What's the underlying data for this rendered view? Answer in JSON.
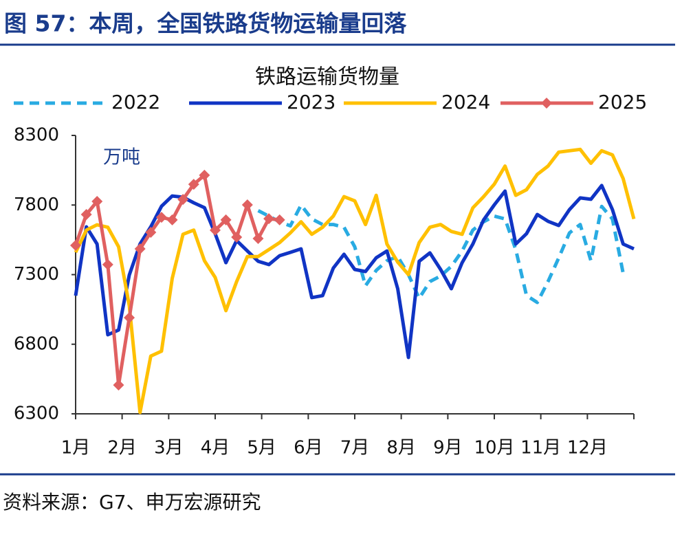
{
  "header": {
    "title": "图 57：本周，全国铁路货物运输量回落"
  },
  "chart_data": {
    "type": "line",
    "title": "铁路运输货物量",
    "unit_label": "万吨",
    "x": [
      0,
      1,
      2,
      3,
      4,
      5,
      6,
      7,
      8,
      9,
      10,
      11,
      12,
      13,
      14,
      15,
      16,
      17,
      18,
      19,
      20,
      21,
      22,
      23,
      24,
      25,
      26,
      27,
      28,
      29,
      30,
      31,
      32,
      33,
      34,
      35,
      36,
      37,
      38,
      39,
      40,
      41,
      42,
      43,
      44,
      45,
      46,
      47,
      48,
      49,
      50,
      51,
      52
    ],
    "xlim": [
      0,
      52
    ],
    "xticks": [
      {
        "value": 0,
        "label": "1月"
      },
      {
        "value": 4.33,
        "label": "2月"
      },
      {
        "value": 8.67,
        "label": "3月"
      },
      {
        "value": 13,
        "label": "4月"
      },
      {
        "value": 17.33,
        "label": "5月"
      },
      {
        "value": 21.67,
        "label": "6月"
      },
      {
        "value": 26,
        "label": "7月"
      },
      {
        "value": 30.33,
        "label": "8月"
      },
      {
        "value": 34.67,
        "label": "9月"
      },
      {
        "value": 39,
        "label": "10月"
      },
      {
        "value": 43.33,
        "label": "11月"
      },
      {
        "value": 47.67,
        "label": "12月"
      },
      {
        "value": 52,
        "label": null
      }
    ],
    "ylim": [
      6300,
      8300
    ],
    "yticks": [
      6300,
      6800,
      7300,
      7800,
      8300
    ],
    "series": [
      {
        "name": "2022",
        "color": "#29abe2",
        "dash": true,
        "markers": false,
        "values": [
          null,
          null,
          null,
          null,
          null,
          null,
          null,
          null,
          null,
          null,
          null,
          null,
          null,
          null,
          null,
          null,
          null,
          7760,
          7720,
          7680,
          7650,
          7800,
          7700,
          7660,
          7660,
          7640,
          7500,
          7220,
          7330,
          7400,
          7430,
          7300,
          7130,
          7250,
          7290,
          7360,
          7470,
          7620,
          7680,
          7720,
          7700,
          7480,
          7150,
          7100,
          7250,
          7420,
          7600,
          7660,
          7400,
          7790,
          7700,
          7310,
          null
        ]
      },
      {
        "name": "2023",
        "color": "#1034c4",
        "dash": false,
        "markers": false,
        "values": [
          7149,
          7643,
          7520,
          6868,
          6902,
          7298,
          7520,
          7643,
          7791,
          7865,
          7856,
          7816,
          7781,
          7594,
          7386,
          7545,
          7470,
          7396,
          7372,
          7436,
          7460,
          7485,
          7135,
          7149,
          7347,
          7446,
          7337,
          7322,
          7421,
          7470,
          7199,
          6705,
          7396,
          7456,
          7337,
          7199,
          7386,
          7520,
          7693,
          7801,
          7900,
          7520,
          7594,
          7732,
          7683,
          7653,
          7767,
          7851,
          7841,
          7940,
          7767,
          7520,
          7485
        ]
      },
      {
        "name": "2024",
        "color": "#ffc000",
        "dash": false,
        "markers": false,
        "values": [
          7460,
          7620,
          7658,
          7640,
          7500,
          7075,
          6310,
          6715,
          6750,
          7273,
          7590,
          7620,
          7400,
          7280,
          7041,
          7250,
          7430,
          7430,
          7480,
          7530,
          7600,
          7680,
          7590,
          7640,
          7720,
          7860,
          7830,
          7660,
          7870,
          7520,
          7390,
          7300,
          7530,
          7640,
          7660,
          7610,
          7590,
          7780,
          7860,
          7950,
          8080,
          7870,
          7910,
          8020,
          8080,
          8180,
          8190,
          8200,
          8100,
          8190,
          8160,
          7990,
          7700
        ]
      },
      {
        "name": "2025",
        "color": "#e06060",
        "dash": false,
        "markers": true,
        "values": [
          7510,
          7732,
          7826,
          7372,
          6507,
          6991,
          7485,
          7604,
          7712,
          7693,
          7840,
          7949,
          8014,
          7619,
          7693,
          7569,
          7801,
          7559,
          7702,
          7693,
          null,
          null,
          null,
          null,
          null,
          null,
          null,
          null,
          null,
          null,
          null,
          null,
          null,
          null,
          null,
          null,
          null,
          null,
          null,
          null,
          null,
          null,
          null,
          null,
          null,
          null,
          null,
          null,
          null,
          null,
          null,
          null,
          null
        ]
      }
    ]
  },
  "footer": {
    "source": "资料来源：G7、申万宏源研究"
  }
}
